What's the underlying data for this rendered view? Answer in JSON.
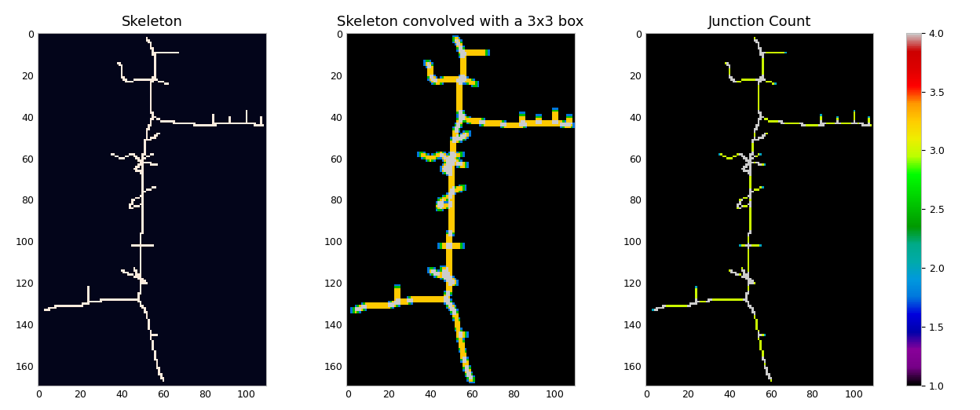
{
  "chart_data": [
    {
      "type": "heatmap",
      "title": "Skeleton",
      "xlim": [
        -0.5,
        109.5
      ],
      "ylim": [
        169.5,
        -0.5
      ],
      "xticks": [
        0,
        20,
        40,
        60,
        80,
        100
      ],
      "yticks": [
        0,
        20,
        40,
        60,
        80,
        100,
        120,
        140,
        160
      ],
      "grid": false,
      "skeleton_paths": [
        [
          [
            52,
            2
          ],
          [
            54,
            5
          ],
          [
            55,
            9
          ],
          [
            56,
            12
          ],
          [
            56,
            20
          ],
          [
            54,
            24
          ],
          [
            54,
            35
          ],
          [
            55,
            40
          ],
          [
            52,
            47
          ],
          [
            51,
            55
          ],
          [
            50,
            62
          ],
          [
            50,
            70
          ],
          [
            50,
            78
          ],
          [
            50,
            90
          ],
          [
            49,
            102
          ],
          [
            49,
            115
          ],
          [
            49,
            122
          ],
          [
            48,
            128
          ],
          [
            52,
            135
          ],
          [
            54,
            145
          ],
          [
            56,
            155
          ],
          [
            58,
            163
          ],
          [
            60,
            167
          ]
        ],
        [
          [
            55,
            9
          ],
          [
            60,
            9
          ],
          [
            67,
            9
          ]
        ],
        [
          [
            56,
            22
          ],
          [
            48,
            22
          ],
          [
            43,
            23
          ],
          [
            40,
            21
          ],
          [
            40,
            15
          ],
          [
            38,
            14
          ]
        ],
        [
          [
            56,
            22
          ],
          [
            62,
            24
          ]
        ],
        [
          [
            55,
            40
          ],
          [
            60,
            42
          ],
          [
            70,
            43
          ],
          [
            80,
            44
          ],
          [
            90,
            43
          ],
          [
            100,
            43
          ],
          [
            108,
            44
          ]
        ],
        [
          [
            84,
            44
          ],
          [
            84,
            39
          ]
        ],
        [
          [
            92,
            43
          ],
          [
            92,
            40
          ]
        ],
        [
          [
            100,
            43
          ],
          [
            100,
            37
          ]
        ],
        [
          [
            107,
            44
          ],
          [
            107,
            40
          ]
        ],
        [
          [
            53,
            51
          ],
          [
            58,
            48
          ]
        ],
        [
          [
            50,
            62
          ],
          [
            45,
            58
          ],
          [
            40,
            60
          ],
          [
            35,
            58
          ]
        ],
        [
          [
            50,
            62
          ],
          [
            46,
            65
          ],
          [
            50,
            67
          ]
        ],
        [
          [
            50,
            60
          ],
          [
            55,
            58
          ]
        ],
        [
          [
            50,
            62
          ],
          [
            57,
            63
          ]
        ],
        [
          [
            50,
            76
          ],
          [
            56,
            74
          ]
        ],
        [
          [
            50,
            78
          ],
          [
            45,
            80
          ],
          [
            44,
            84
          ],
          [
            50,
            82
          ]
        ],
        [
          [
            45,
            102
          ],
          [
            55,
            102
          ]
        ],
        [
          [
            49,
            118
          ],
          [
            44,
            116
          ],
          [
            40,
            114
          ]
        ],
        [
          [
            49,
            118
          ],
          [
            52,
            120
          ]
        ],
        [
          [
            46,
            113
          ],
          [
            50,
            120
          ]
        ],
        [
          [
            48,
            128
          ],
          [
            35,
            128
          ],
          [
            25,
            129
          ],
          [
            20,
            131
          ],
          [
            10,
            131
          ],
          [
            3,
            133
          ]
        ],
        [
          [
            24,
            129
          ],
          [
            24,
            122
          ]
        ],
        [
          [
            54,
            145
          ],
          [
            57,
            145
          ]
        ]
      ]
    },
    {
      "type": "heatmap",
      "title": "Skeleton convolved with a 3x3 box",
      "xlim": [
        -0.5,
        109.5
      ],
      "ylim": [
        169.5,
        -0.5
      ],
      "xticks": [
        0,
        20,
        40,
        60,
        80,
        100
      ],
      "yticks": [
        0,
        20,
        40,
        60,
        80,
        100,
        120,
        140,
        160
      ],
      "grid": false
    },
    {
      "type": "heatmap",
      "title": "Junction Count",
      "xlim": [
        -0.5,
        109.5
      ],
      "ylim": [
        169.5,
        -0.5
      ],
      "xticks": [
        0,
        20,
        40,
        60,
        80,
        100
      ],
      "yticks": [
        0,
        20,
        40,
        60,
        80,
        100,
        120,
        140,
        160
      ],
      "grid": false,
      "colorbar_range": [
        1,
        4
      ],
      "colorbar_ticks": [
        {
          "value": 1,
          "label": "1.0"
        },
        1.5,
        {
          "value": 2,
          "label": "2.0"
        },
        2.5,
        {
          "value": 3,
          "label": "3.0"
        },
        3.5,
        {
          "value": 4,
          "label": "4.0"
        }
      ]
    }
  ]
}
